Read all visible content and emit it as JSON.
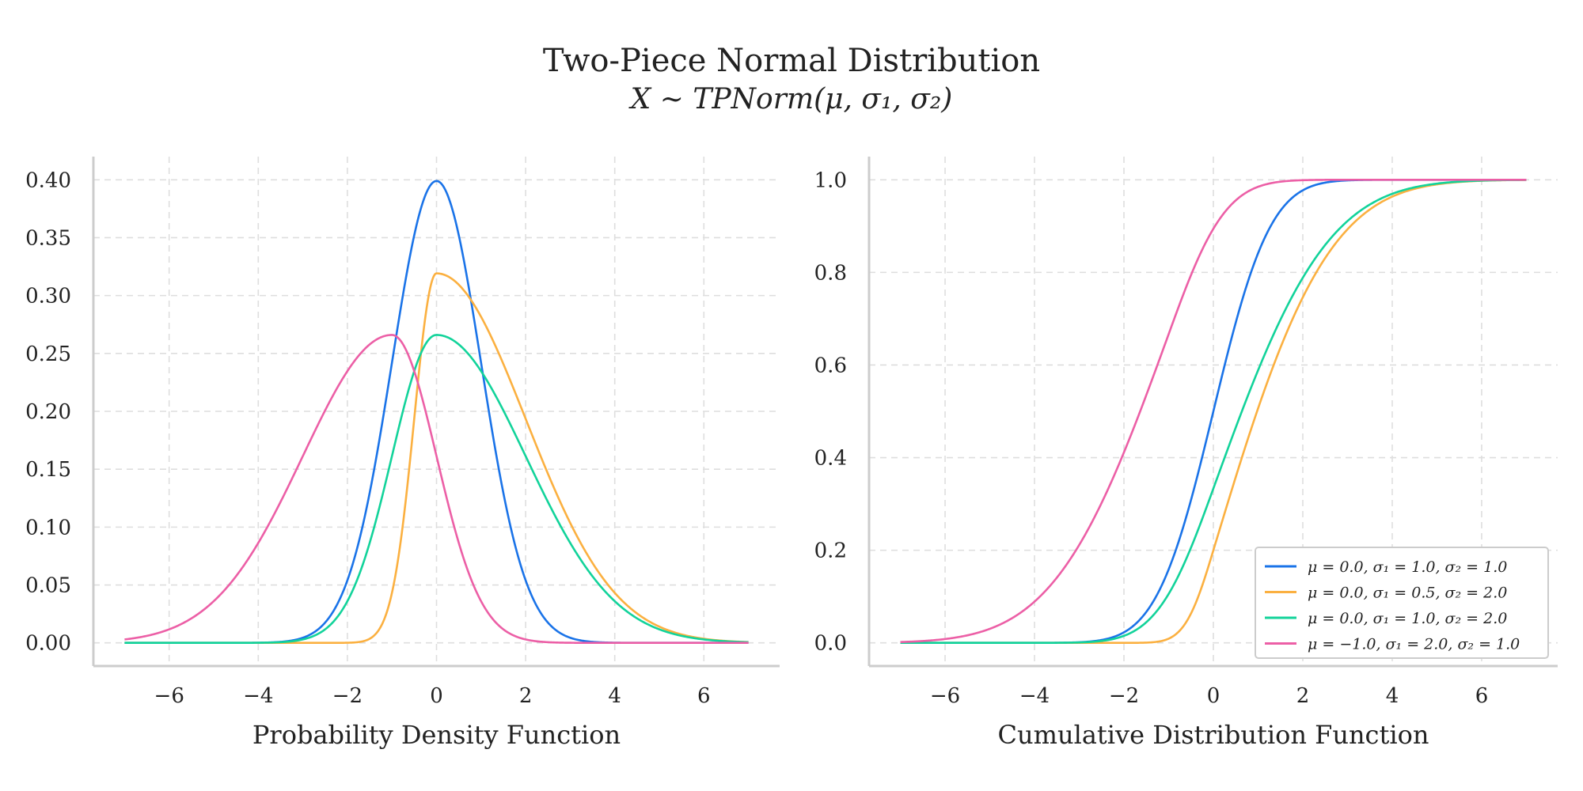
{
  "title": "Two-Piece Normal Distribution",
  "subtitle": "X ∼ TPNorm(μ, σ₁, σ₂)",
  "chart_data": [
    {
      "type": "line",
      "id": "pdf",
      "xlabel": "Probability Density Function",
      "ylabel": "",
      "xlim": [
        -7.7,
        7.7
      ],
      "ylim": [
        -0.02,
        0.42
      ],
      "xticks": [
        -6,
        -4,
        -2,
        0,
        2,
        4,
        6
      ],
      "xtick_labels": [
        "−6",
        "−4",
        "−2",
        "0",
        "2",
        "4",
        "6"
      ],
      "yticks": [
        0.0,
        0.05,
        0.1,
        0.15,
        0.2,
        0.25,
        0.3,
        0.35,
        0.4
      ],
      "ytick_labels": [
        "0.00",
        "0.05",
        "0.10",
        "0.15",
        "0.20",
        "0.25",
        "0.30",
        "0.35",
        "0.40"
      ],
      "grid": true,
      "x_range": [
        -7,
        7
      ],
      "series": [
        {
          "name": "μ = 0.0, σ₁ = 1.0, σ₂ = 1.0",
          "mu": 0.0,
          "s1": 1.0,
          "s2": 1.0,
          "color": "#1a73e8"
        },
        {
          "name": "μ = 0.0, σ₁ = 0.5, σ₂ = 2.0",
          "mu": 0.0,
          "s1": 0.5,
          "s2": 2.0,
          "color": "#fbb040"
        },
        {
          "name": "μ = 0.0, σ₁ = 1.0, σ₂ = 2.0",
          "mu": 0.0,
          "s1": 1.0,
          "s2": 2.0,
          "color": "#12d39a"
        },
        {
          "name": "μ = −1.0, σ₁ = 2.0, σ₂ = 1.0",
          "mu": -1.0,
          "s1": 2.0,
          "s2": 1.0,
          "color": "#ec5fa6"
        }
      ]
    },
    {
      "type": "line",
      "id": "cdf",
      "xlabel": "Cumulative Distribution Function",
      "ylabel": "",
      "xlim": [
        -7.7,
        7.7
      ],
      "ylim": [
        -0.05,
        1.05
      ],
      "xticks": [
        -6,
        -4,
        -2,
        0,
        2,
        4,
        6
      ],
      "xtick_labels": [
        "−6",
        "−4",
        "−2",
        "0",
        "2",
        "4",
        "6"
      ],
      "yticks": [
        0.0,
        0.2,
        0.4,
        0.6,
        0.8,
        1.0
      ],
      "ytick_labels": [
        "0.0",
        "0.2",
        "0.4",
        "0.6",
        "0.8",
        "1.0"
      ],
      "grid": true,
      "legend": "lower right",
      "x_range": [
        -7,
        7
      ],
      "series": [
        {
          "name": "μ = 0.0, σ₁ = 1.0, σ₂ = 1.0",
          "mu": 0.0,
          "s1": 1.0,
          "s2": 1.0,
          "color": "#1a73e8"
        },
        {
          "name": "μ = 0.0, σ₁ = 0.5, σ₂ = 2.0",
          "mu": 0.0,
          "s1": 0.5,
          "s2": 2.0,
          "color": "#fbb040"
        },
        {
          "name": "μ = 0.0, σ₁ = 1.0, σ₂ = 2.0",
          "mu": 0.0,
          "s1": 1.0,
          "s2": 2.0,
          "color": "#12d39a"
        },
        {
          "name": "μ = −1.0, σ₁ = 2.0, σ₂ = 1.0",
          "mu": -1.0,
          "s1": 2.0,
          "s2": 1.0,
          "color": "#ec5fa6"
        }
      ]
    }
  ]
}
